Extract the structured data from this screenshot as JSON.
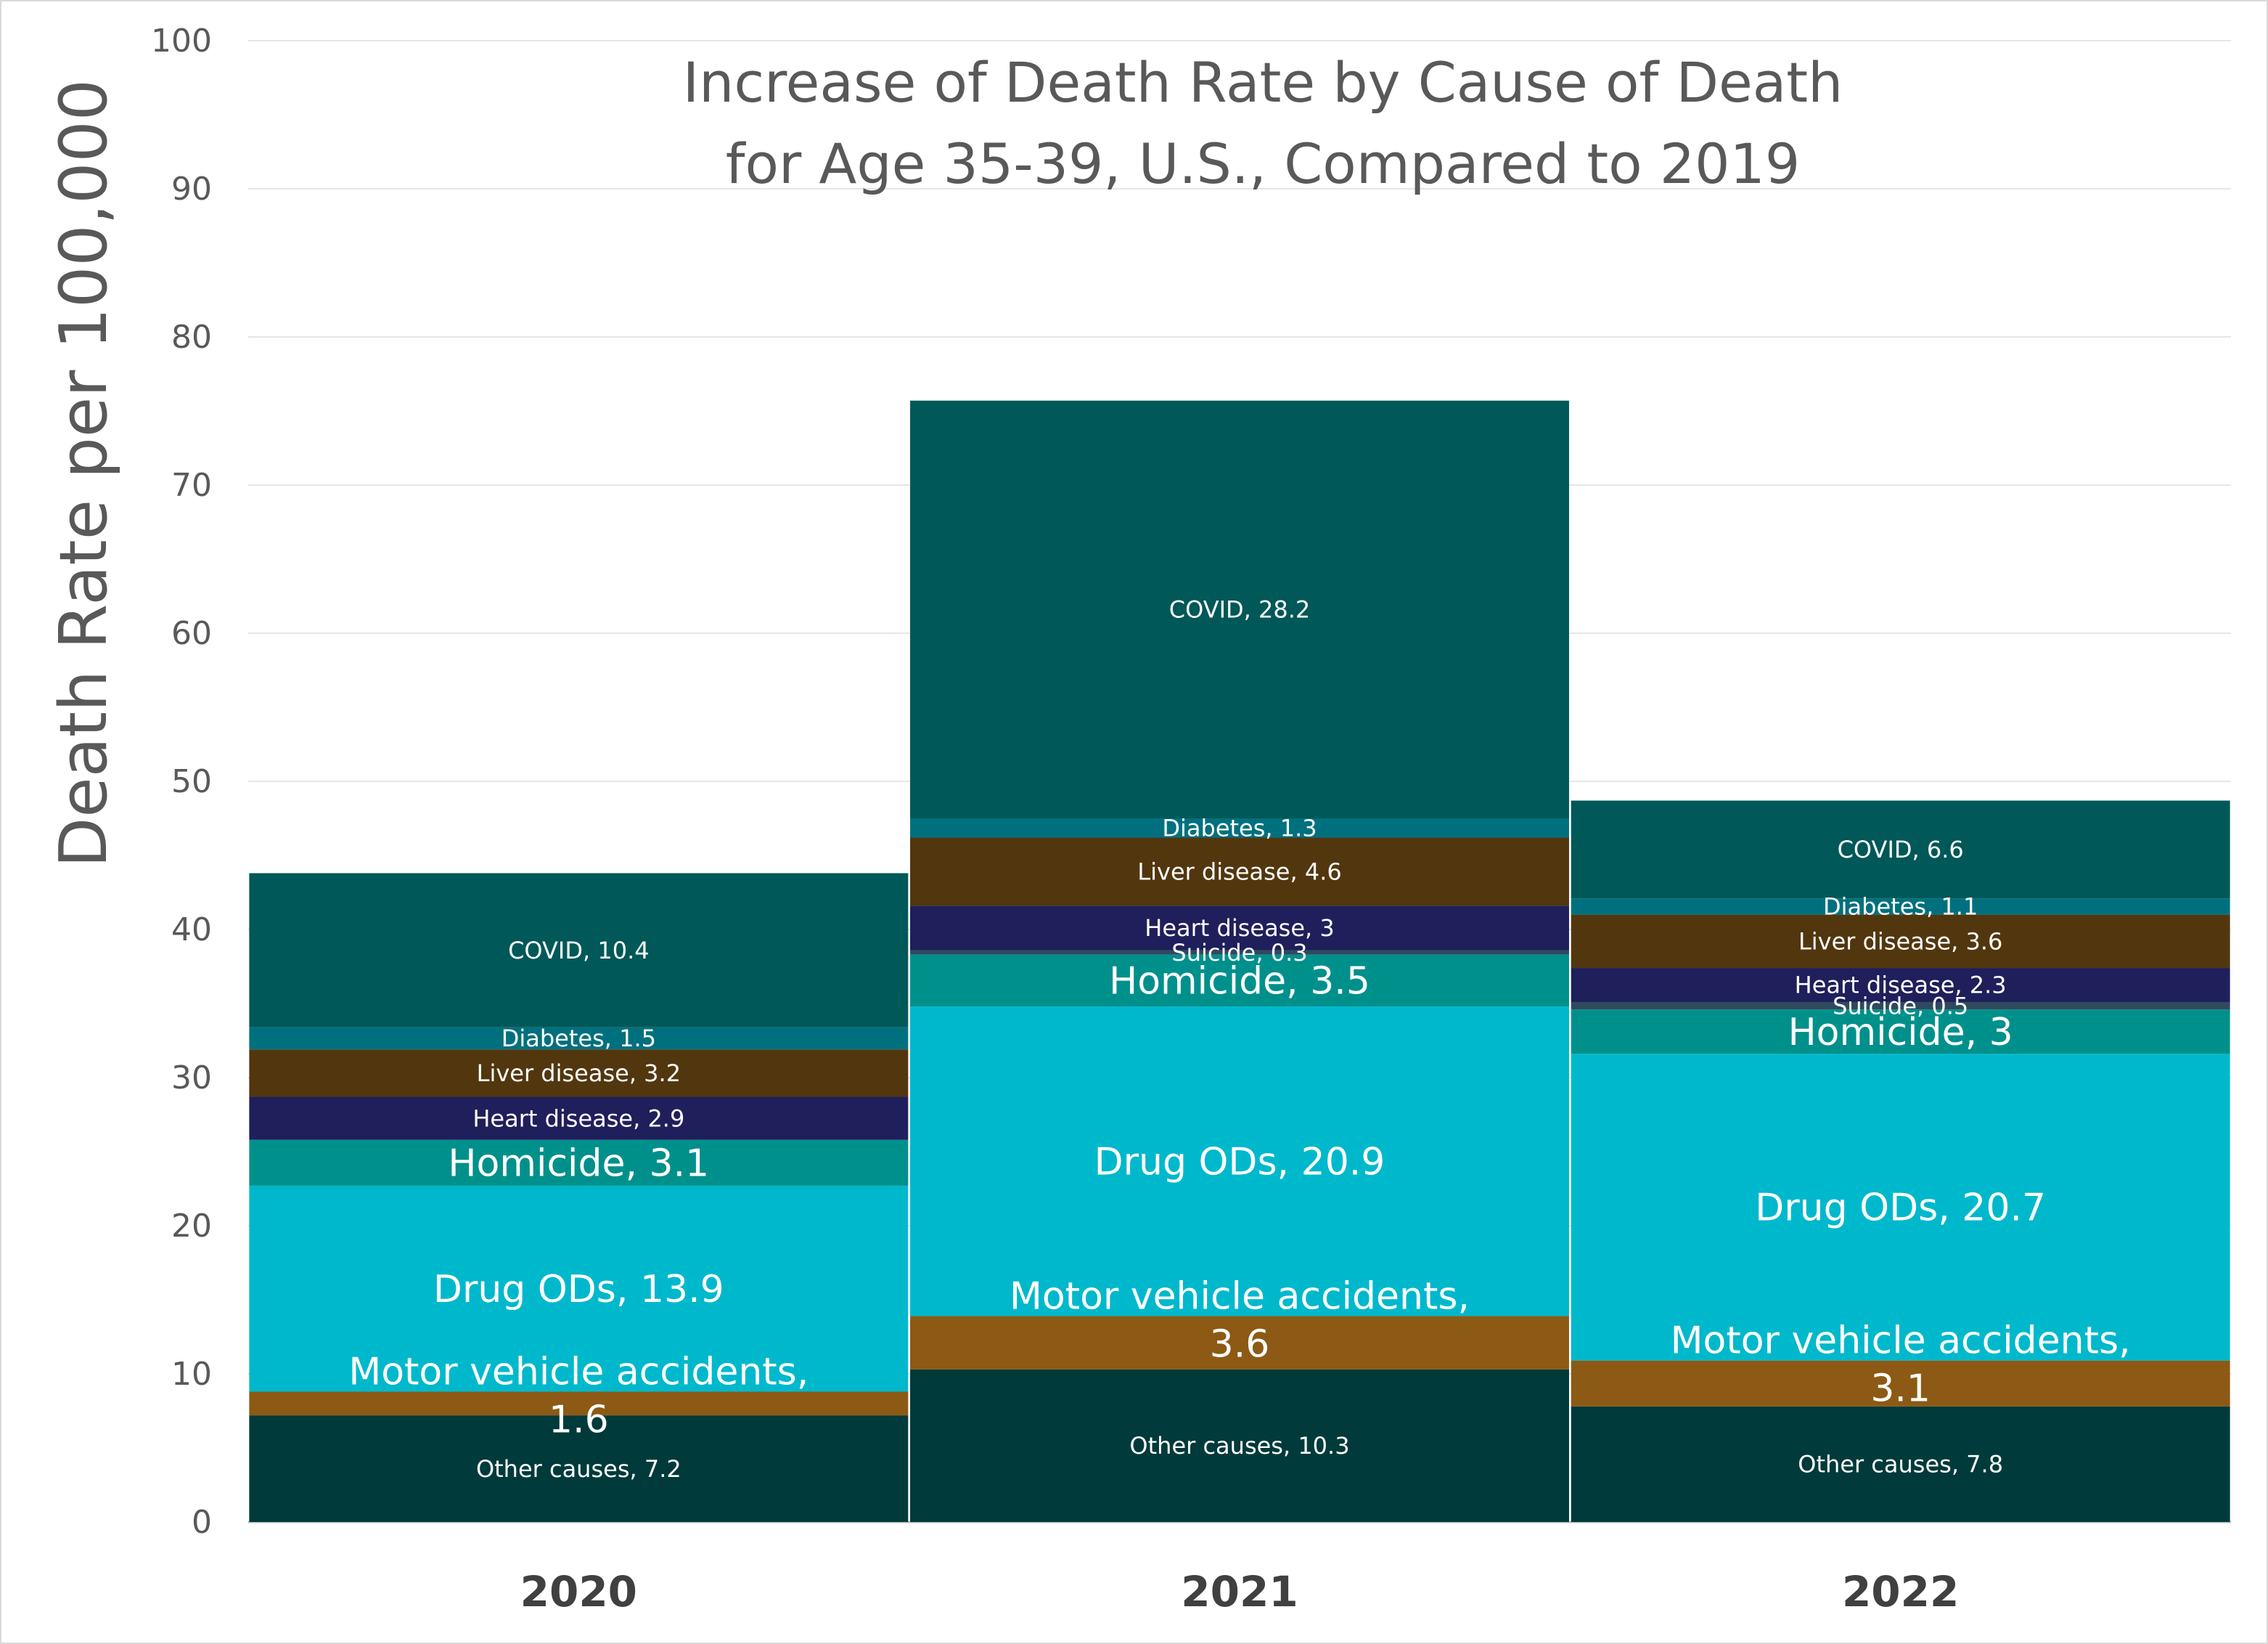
{
  "chart_data": {
    "type": "bar",
    "stacked": true,
    "title": [
      "Increase of Death Rate by Cause of Death",
      "for Age 35-39, U.S., Compared to 2019"
    ],
    "xlabel": "",
    "ylabel": "Death Rate per 100,000",
    "ylim": [
      0,
      100
    ],
    "yticks": [
      0,
      10,
      20,
      30,
      40,
      50,
      60,
      70,
      80,
      90,
      100
    ],
    "grid": true,
    "legend": "none",
    "categories": [
      "2020",
      "2021",
      "2022"
    ],
    "series": [
      {
        "name": "Other causes",
        "color": "#003a3a",
        "values": [
          7.2,
          10.3,
          7.8
        ],
        "label_size": "small"
      },
      {
        "name": "Motor vehicle accidents",
        "color": "#8c5a14",
        "values": [
          1.6,
          3.6,
          3.1
        ],
        "label_size": "large"
      },
      {
        "name": "Drug ODs",
        "color": "#00b8cc",
        "values": [
          13.9,
          20.9,
          20.7
        ],
        "label_size": "large"
      },
      {
        "name": "Homicide",
        "color": "#00908c",
        "values": [
          3.1,
          3.5,
          3
        ],
        "label_size": "large"
      },
      {
        "name": "Suicide",
        "color": "#2f4a5e",
        "values": [
          0,
          0.3,
          0.5
        ],
        "label_size": "small"
      },
      {
        "name": "Heart disease",
        "color": "#1f1f5c",
        "values": [
          2.9,
          3,
          2.3
        ],
        "label_size": "small"
      },
      {
        "name": "Liver disease",
        "color": "#52360e",
        "values": [
          3.2,
          4.6,
          3.6
        ],
        "label_size": "small"
      },
      {
        "name": "Diabetes",
        "color": "#00707e",
        "values": [
          1.5,
          1.3,
          1.1
        ],
        "label_size": "small"
      },
      {
        "name": "COVID",
        "color": "#005858",
        "values": [
          10.4,
          28.2,
          6.6
        ],
        "label_size": "small"
      }
    ],
    "data_labels": [
      [
        "Other causes, 7.2",
        "Motor vehicle accidents,|1.6",
        "Drug ODs, 13.9",
        "Homicide, 3.1",
        "",
        "Heart disease, 2.9",
        "Liver disease, 3.2",
        "Diabetes, 1.5",
        "COVID, 10.4"
      ],
      [
        "Other causes, 10.3",
        "Motor vehicle accidents,|3.6",
        "Drug ODs, 20.9",
        "Homicide, 3.5",
        "Suicide, 0.3",
        "Heart disease, 3",
        "Liver disease, 4.6",
        "Diabetes, 1.3",
        "COVID, 28.2"
      ],
      [
        "Other causes, 7.8",
        "Motor vehicle accidents,|3.1",
        "Drug ODs, 20.7",
        "Homicide, 3",
        "Suicide, 0.5",
        "Heart disease, 2.3",
        "Liver disease, 3.6",
        "Diabetes, 1.1",
        "COVID, 6.6"
      ]
    ],
    "colors": {
      "gridline": "#e6e6e6",
      "axis_text": "#595959",
      "category_text": "#404040"
    }
  }
}
